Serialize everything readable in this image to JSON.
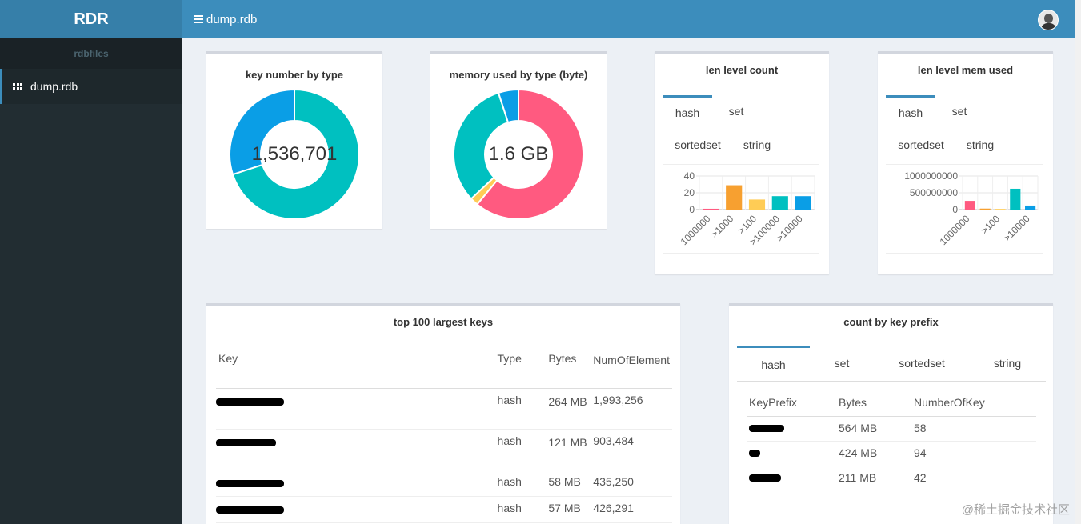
{
  "app": {
    "brand": "RDR",
    "section_header": "rdbfiles"
  },
  "sidebar": {
    "items": [
      {
        "label": "dump.rdb",
        "icon": "grid-icon"
      }
    ]
  },
  "header": {
    "title": "dump.rdb",
    "menu_icon": "hamburger-icon",
    "avatar_icon": "user-avatar"
  },
  "key_number": {
    "title": "key number by type",
    "center": "1,536,701"
  },
  "memory_used": {
    "title": "memory used by type (byte)",
    "center": "1.6 GB"
  },
  "len_level_count": {
    "title": "len level count",
    "tabs": [
      "hash",
      "set",
      "sortedset",
      "string"
    ],
    "active_tab": 0,
    "y_ticks": [
      "40",
      "20",
      "0"
    ],
    "x_labels": [
      "1000000",
      ">1000",
      ">100",
      ">100000",
      ">10000"
    ]
  },
  "len_level_mem": {
    "title": "len level mem used",
    "tabs": [
      "hash",
      "set",
      "sortedset",
      "string"
    ],
    "active_tab": 0,
    "y_ticks": [
      "1000000000",
      "500000000",
      "0"
    ],
    "x_labels": [
      "1000000",
      ">100",
      ">10000"
    ]
  },
  "top_keys": {
    "title": "top 100 largest keys",
    "columns": [
      "Key",
      "Type",
      "Bytes",
      "NumOfElement"
    ],
    "rows": [
      {
        "type": "hash",
        "bytes": "264 MB",
        "count": "1,993,256"
      },
      {
        "type": "hash",
        "bytes": "121 MB",
        "count": "903,484"
      },
      {
        "type": "hash",
        "bytes": "58 MB",
        "count": "435,250"
      },
      {
        "type": "hash",
        "bytes": "57 MB",
        "count": "426,291"
      }
    ]
  },
  "prefix": {
    "title": "count by key prefix",
    "tabs": [
      "hash",
      "set",
      "sortedset",
      "string"
    ],
    "active_tab": 0,
    "columns": [
      "KeyPrefix",
      "Bytes",
      "NumberOfKey"
    ],
    "rows": [
      {
        "bytes": "564 MB",
        "count": "58"
      },
      {
        "bytes": "424 MB",
        "count": "94"
      },
      {
        "bytes": "211 MB",
        "count": "42"
      }
    ]
  },
  "watermark": "@稀土掘金技术社区",
  "colors": {
    "teal": "#00c0c0",
    "blue": "#0a9ee6",
    "pink": "#ff5a80",
    "orange": "#f7a030",
    "yellow": "#ffcc55",
    "brand": "#3c8dbc"
  },
  "chart_data": [
    {
      "type": "pie",
      "title": "key number by type",
      "slices": [
        {
          "value": 0.7,
          "color": "#00c0c0"
        },
        {
          "value": 0.3,
          "color": "#0a9ee6"
        }
      ]
    },
    {
      "type": "pie",
      "title": "memory used by type (byte)",
      "slices": [
        {
          "value": 0.61,
          "color": "#ff5a80"
        },
        {
          "value": 0.02,
          "color": "#ffcc55"
        },
        {
          "value": 0.32,
          "color": "#00c0c0"
        },
        {
          "value": 0.05,
          "color": "#0a9ee6"
        }
      ]
    },
    {
      "type": "bar",
      "title": "len level count",
      "categories": [
        "1000000",
        ">1000",
        ">100",
        ">100000",
        ">10000"
      ],
      "values": [
        1,
        29,
        12,
        16,
        16
      ],
      "colors": [
        "#ff5a80",
        "#f7a030",
        "#ffcc55",
        "#00c0c0",
        "#0a9ee6"
      ],
      "ylim": [
        0,
        40
      ],
      "grid": true
    },
    {
      "type": "bar",
      "title": "len level mem used",
      "categories": [
        "1000000",
        "",
        ">100",
        "",
        ">10000"
      ],
      "values": [
        260000000,
        30000000,
        20000000,
        620000000,
        120000000
      ],
      "colors": [
        "#ff5a80",
        "#f7a030",
        "#ffcc55",
        "#00c0c0",
        "#0a9ee6"
      ],
      "ylim": [
        0,
        1000000000
      ],
      "grid": true
    }
  ]
}
